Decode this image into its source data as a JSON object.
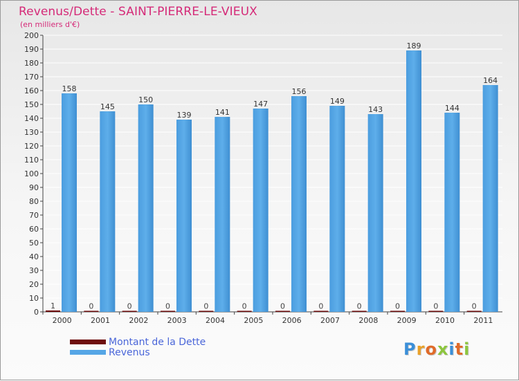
{
  "chart_data": {
    "type": "bar",
    "title": "Revenus/Dette - SAINT-PIERRE-LE-VIEUX",
    "subtitle": "(en milliers d'€)",
    "xlabel": "",
    "ylabel": "",
    "ylim": [
      0,
      200
    ],
    "yticks": [
      0,
      10,
      20,
      30,
      40,
      50,
      60,
      70,
      80,
      90,
      100,
      110,
      120,
      130,
      140,
      150,
      160,
      170,
      180,
      190,
      200
    ],
    "grid": true,
    "categories": [
      "2000",
      "2001",
      "2002",
      "2003",
      "2004",
      "2005",
      "2006",
      "2007",
      "2008",
      "2009",
      "2010",
      "2011"
    ],
    "series": [
      {
        "name": "Montant de la Dette",
        "color": "#6e0d0d",
        "values": [
          1,
          0,
          0,
          0,
          0,
          0,
          0,
          0,
          0,
          0,
          0,
          0
        ]
      },
      {
        "name": "Revenus",
        "color": "#55a6e6",
        "values": [
          158,
          145,
          150,
          139,
          141,
          147,
          156,
          149,
          143,
          189,
          144,
          164
        ]
      }
    ],
    "legend_position": "bottom-left"
  },
  "logo": {
    "letters": [
      {
        "ch": "P",
        "color": "#3b8fd8"
      },
      {
        "ch": "r",
        "color": "#e9a12a"
      },
      {
        "ch": "o",
        "color": "#e06b2a"
      },
      {
        "ch": "x",
        "color": "#8dc63f"
      },
      {
        "ch": "i",
        "color": "#3b8fd8"
      },
      {
        "ch": "t",
        "color": "#e06b2a"
      },
      {
        "ch": "i",
        "color": "#8dc63f"
      }
    ]
  }
}
